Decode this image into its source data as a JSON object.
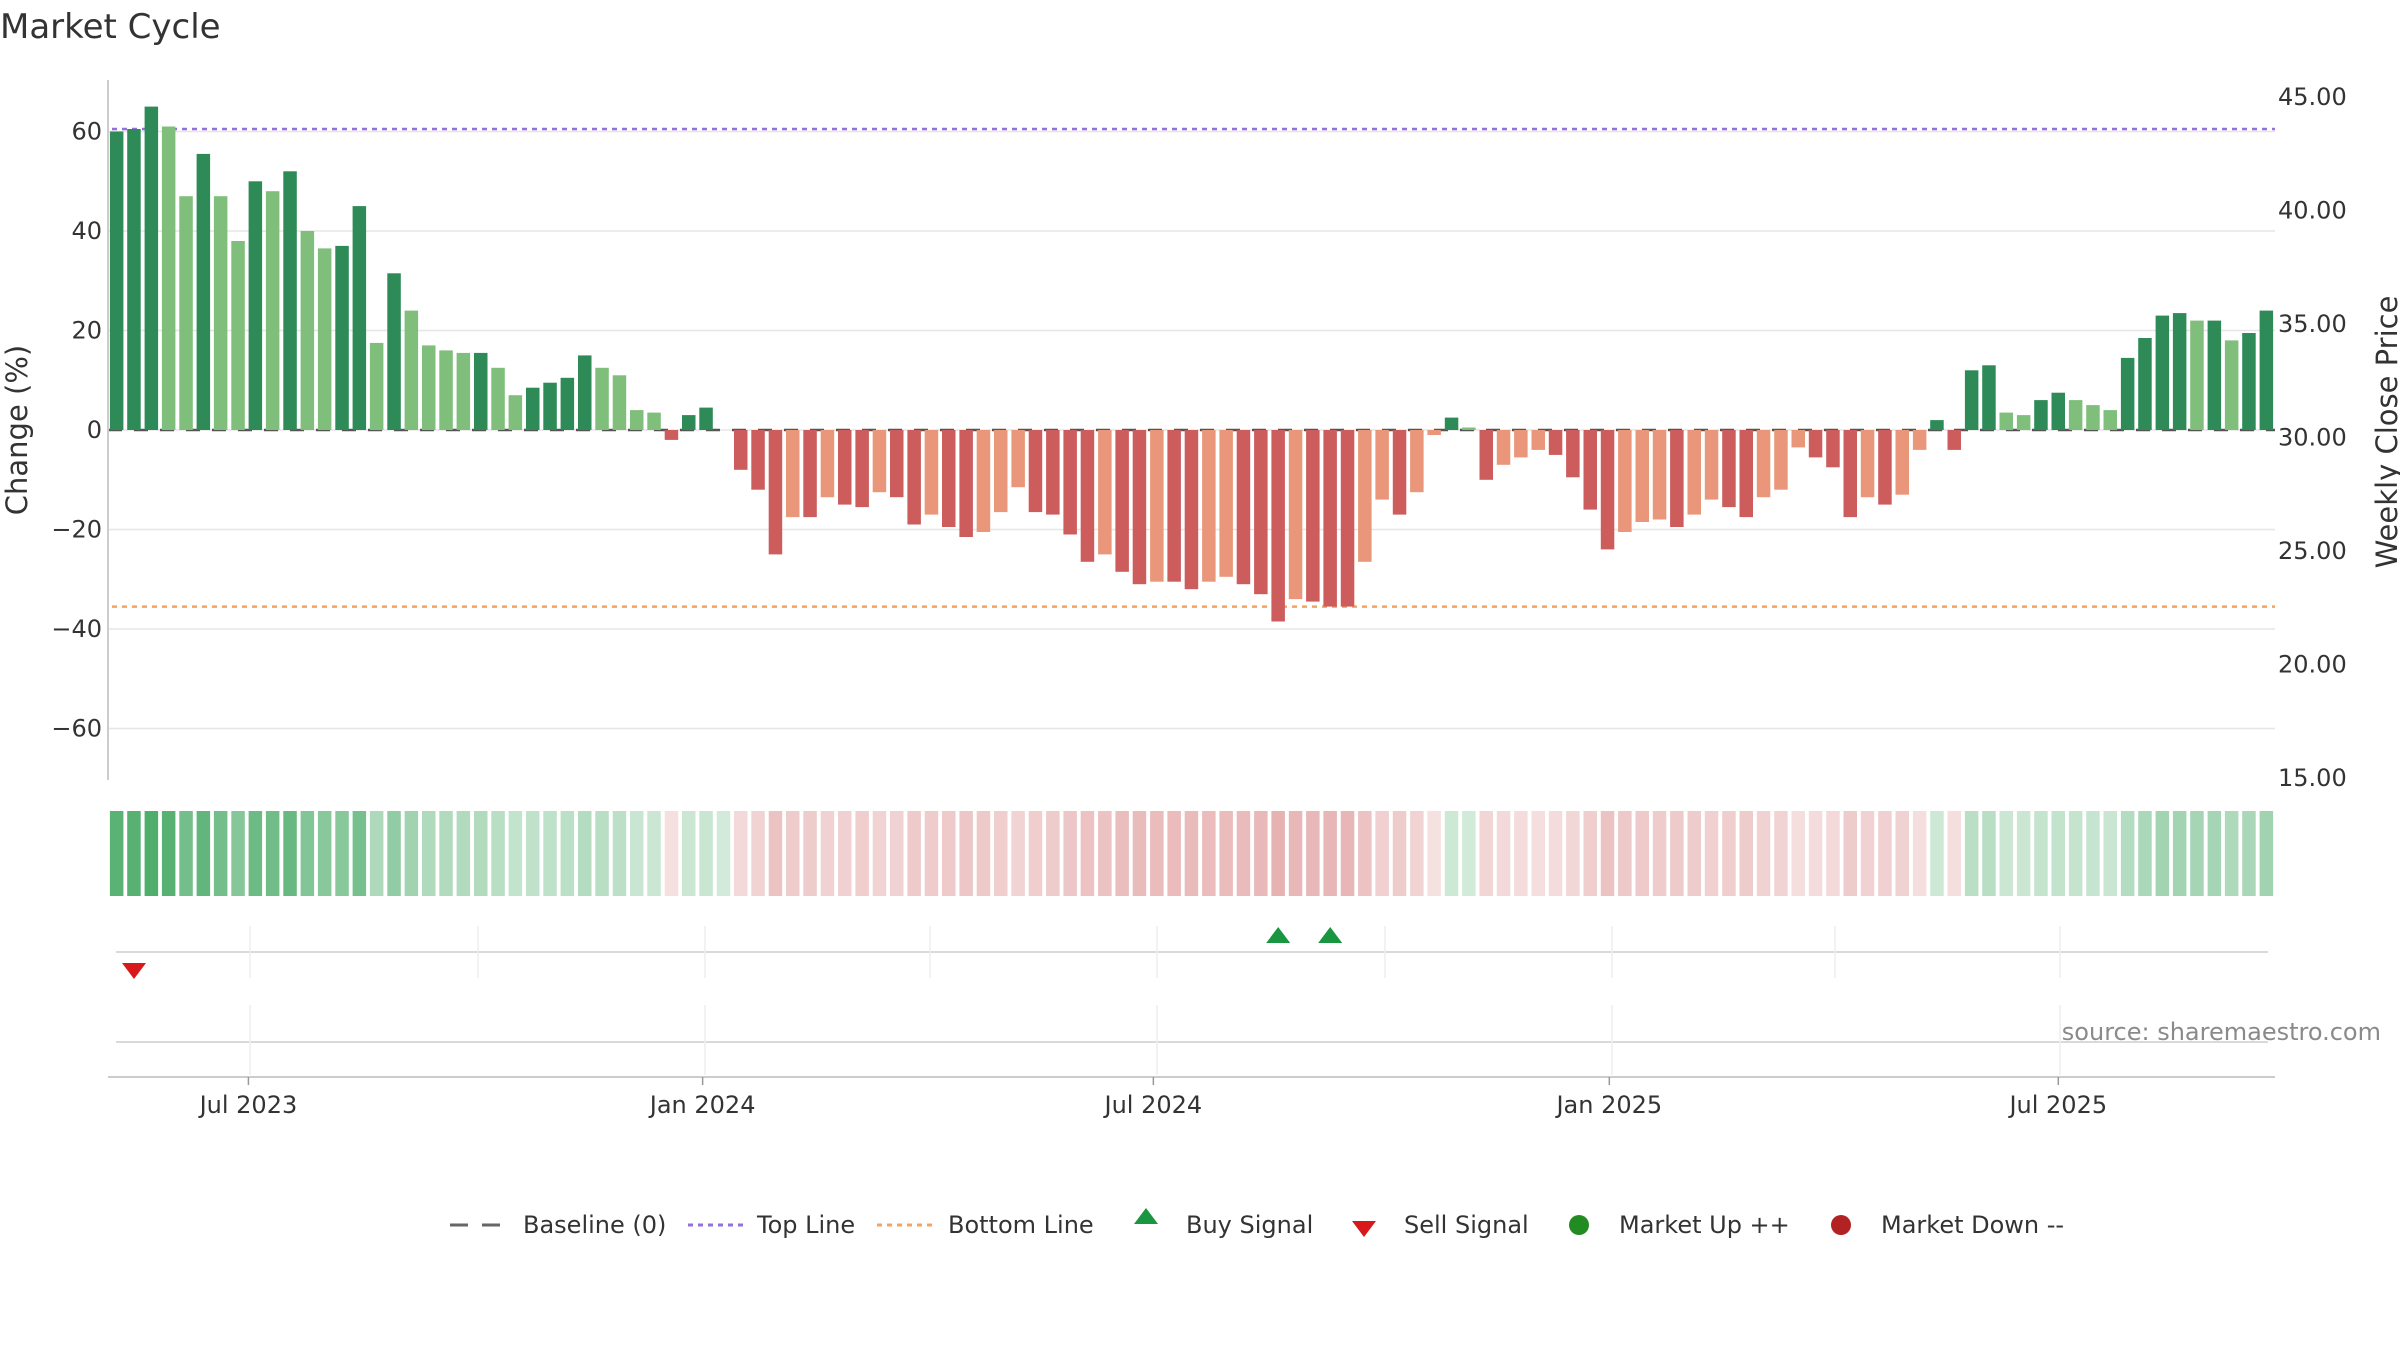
{
  "title": "Market Cycle",
  "source": "source: sharemaestro.com",
  "chart_data": {
    "type": "bar",
    "y_left_label": "Change (%)",
    "y_right_label": "Weekly Close Price",
    "y_left_range": [
      -70,
      72
    ],
    "y_right_range": [
      15,
      47
    ],
    "y_left_ticks": [
      "60",
      "40",
      "20",
      "0",
      "−20",
      "−40",
      "−60"
    ],
    "y_left_tick_values": [
      60,
      40,
      20,
      0,
      -20,
      -40,
      -60
    ],
    "y_right_ticks": [
      "45.00",
      "40.00",
      "35.00",
      "30.00",
      "25.00",
      "20.00",
      "15.00"
    ],
    "y_right_tick_values": [
      45,
      40,
      35,
      30,
      25,
      20,
      15
    ],
    "x_ticks": [
      "Jul 2023",
      "Jan 2024",
      "Jul 2024",
      "Jan 2025",
      "Jul 2025"
    ],
    "x_tick_positions": [
      8.1,
      34.3,
      60.3,
      86.6,
      112.5
    ],
    "top_line": 60.5,
    "bottom_line": -35.5,
    "baseline": 0,
    "values": [
      60,
      60.5,
      65,
      61,
      47,
      55.5,
      47,
      38,
      50,
      48,
      52,
      40,
      36.5,
      37,
      45,
      17.5,
      31.5,
      24,
      17,
      16,
      15.5,
      15.5,
      12.5,
      7,
      8.5,
      9.5,
      10.5,
      15,
      12.5,
      11,
      4,
      3.5,
      -2,
      3,
      4.5,
      0,
      -8,
      -12,
      -25,
      -17.5,
      -17.5,
      -13.5,
      -15,
      -15.5,
      -12.5,
      -13.5,
      -19,
      -17,
      -19.5,
      -21.5,
      -20.5,
      -16.5,
      -11.5,
      -16.5,
      -17,
      -21,
      -26.5,
      -25,
      -28.5,
      -31,
      -30.5,
      -30.5,
      -32,
      -30.5,
      -29.5,
      -31,
      -33,
      -38.5,
      -34,
      -34.5,
      -35.5,
      -35.5,
      -26.5,
      -14,
      -17,
      -12.5,
      -1,
      2.5,
      0.5,
      -10,
      -7,
      -5.5,
      -4,
      -5,
      -9.5,
      -16,
      -24,
      -20.5,
      -18.5,
      -18,
      -19.5,
      -17,
      -14,
      -15.5,
      -17.5,
      -13.5,
      -12,
      -3.5,
      -5.5,
      -7.5,
      -17.5,
      -13.5,
      -15,
      -13,
      -4,
      2,
      -4,
      12,
      13,
      3.5,
      3,
      6,
      7.5,
      6,
      5,
      4,
      14.5,
      18.5,
      23,
      23.5,
      22,
      22,
      18,
      19.5,
      24
    ],
    "buy_signals": [
      67.5,
      70.5
    ],
    "sell_signals": [
      1.5
    ],
    "legend": [
      "Baseline (0)",
      "Top Line",
      "Bottom Line",
      "Buy Signal",
      "Sell Signal",
      "Market Up ++",
      "Market Down --"
    ],
    "colors": {
      "up_dark": "#2e8b57",
      "up_light": "#7fbf7b",
      "down_dark": "#cd5c5c",
      "down_light": "#e9967a",
      "top_line": "#9370db",
      "bottom_line": "#f4a460",
      "buy": "#1a9641",
      "sell": "#d7191c",
      "market_up": "#228b22",
      "market_down": "#b22222"
    }
  }
}
